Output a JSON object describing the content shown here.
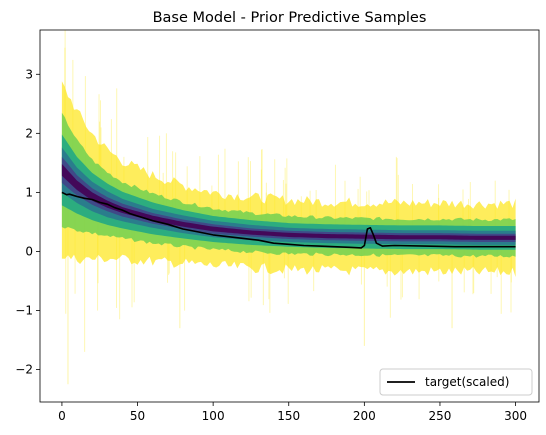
{
  "chart_data": {
    "type": "line",
    "title": "Base Model - Prior Predictive Samples",
    "xlabel": "",
    "ylabel": "",
    "xlim": [
      -14.5,
      315.5
    ],
    "ylim": [
      -2.55,
      3.75
    ],
    "xticks": [
      0,
      50,
      100,
      150,
      200,
      250,
      300
    ],
    "yticks": [
      -2,
      -1,
      0,
      1,
      2,
      3
    ],
    "xtick_labels": [
      "0",
      "50",
      "100",
      "150",
      "200",
      "250",
      "300"
    ],
    "ytick_labels": [
      "−2",
      "−1",
      "0",
      "1",
      "2",
      "3"
    ],
    "grid": false,
    "legend": {
      "position": "lower-right",
      "entries": [
        "target(scaled)"
      ]
    },
    "colors": {
      "target": "#000000",
      "band_outer": "#fde725",
      "band_2": "#7ad151",
      "band_3": "#22a884",
      "band_4": "#2a788e",
      "band_5": "#414487",
      "band_inner": "#440154"
    },
    "prior_predictive_bands": {
      "x": [
        0,
        5,
        10,
        20,
        30,
        40,
        60,
        80,
        100,
        125,
        150,
        175,
        200,
        225,
        250,
        275,
        300
      ],
      "median": [
        1.38,
        1.25,
        1.12,
        0.93,
        0.8,
        0.7,
        0.56,
        0.46,
        0.38,
        0.32,
        0.28,
        0.26,
        0.25,
        0.24,
        0.24,
        0.23,
        0.23
      ],
      "half_widths": [
        [
          1.45,
          1.36,
          1.25,
          1.06,
          0.92,
          0.83,
          0.73,
          0.66,
          0.62,
          0.6,
          0.59,
          0.58,
          0.58,
          0.58,
          0.58,
          0.58,
          0.58
        ],
        [
          0.95,
          0.86,
          0.76,
          0.62,
          0.54,
          0.48,
          0.42,
          0.38,
          0.35,
          0.33,
          0.32,
          0.31,
          0.31,
          0.31,
          0.31,
          0.31,
          0.31
        ],
        [
          0.6,
          0.54,
          0.48,
          0.4,
          0.35,
          0.31,
          0.27,
          0.24,
          0.22,
          0.21,
          0.2,
          0.2,
          0.2,
          0.2,
          0.2,
          0.2,
          0.2
        ],
        [
          0.38,
          0.34,
          0.3,
          0.25,
          0.22,
          0.19,
          0.16,
          0.15,
          0.14,
          0.13,
          0.12,
          0.12,
          0.12,
          0.12,
          0.12,
          0.12,
          0.12
        ],
        [
          0.22,
          0.2,
          0.17,
          0.14,
          0.12,
          0.11,
          0.09,
          0.08,
          0.08,
          0.07,
          0.07,
          0.07,
          0.07,
          0.07,
          0.07,
          0.07,
          0.07
        ],
        [
          0.1,
          0.09,
          0.08,
          0.07,
          0.06,
          0.05,
          0.045,
          0.04,
          0.04,
          0.035,
          0.035,
          0.035,
          0.035,
          0.035,
          0.035,
          0.035,
          0.035
        ]
      ]
    },
    "series": [
      {
        "name": "target(scaled)",
        "x": [
          0,
          3,
          5,
          10,
          15,
          20,
          25,
          30,
          35,
          40,
          45,
          50,
          60,
          70,
          80,
          90,
          100,
          110,
          120,
          130,
          140,
          150,
          160,
          170,
          180,
          190,
          198,
          200,
          202,
          204,
          206,
          208,
          212,
          220,
          240,
          260,
          280,
          300
        ],
        "y": [
          1.0,
          0.96,
          0.97,
          0.93,
          0.9,
          0.88,
          0.83,
          0.8,
          0.74,
          0.7,
          0.64,
          0.6,
          0.52,
          0.46,
          0.38,
          0.33,
          0.28,
          0.25,
          0.22,
          0.19,
          0.14,
          0.12,
          0.1,
          0.09,
          0.08,
          0.07,
          0.06,
          0.1,
          0.38,
          0.4,
          0.28,
          0.14,
          0.09,
          0.1,
          0.09,
          0.08,
          0.08,
          0.08
        ]
      }
    ]
  }
}
